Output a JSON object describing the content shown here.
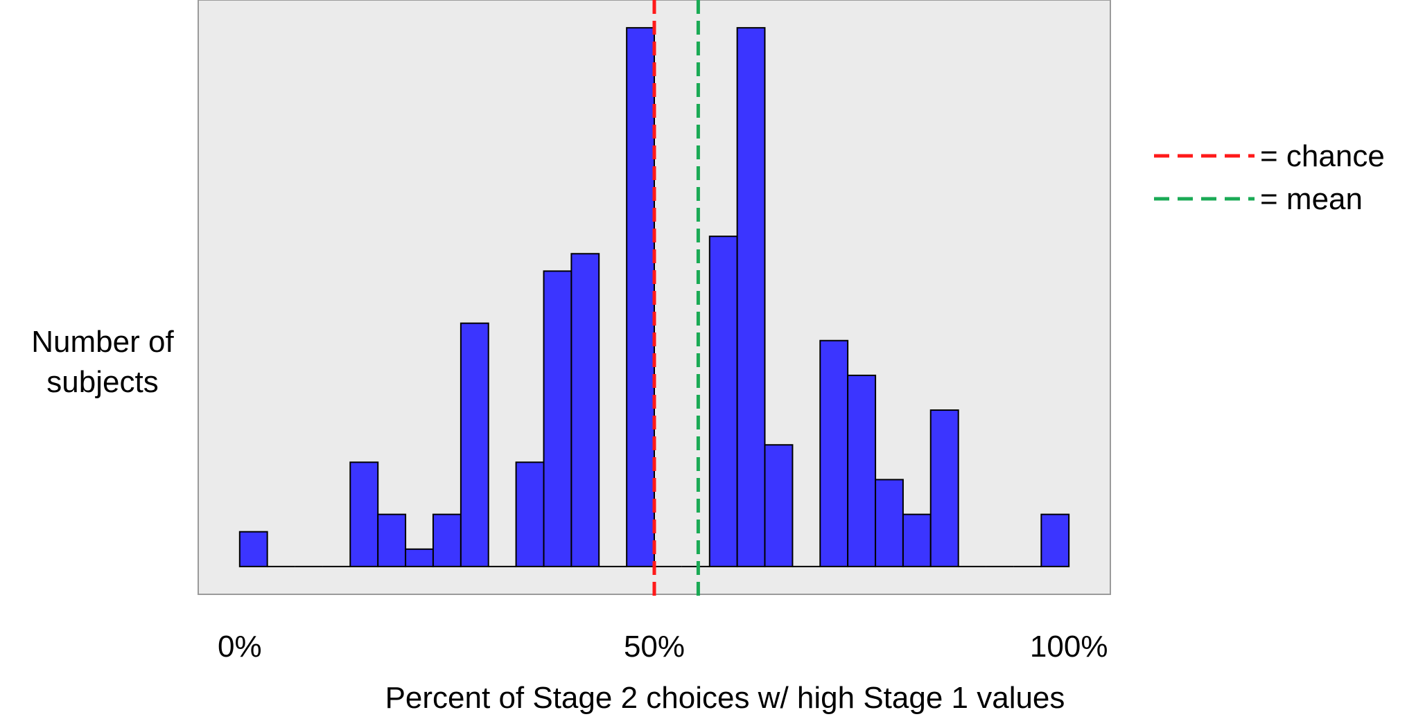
{
  "chart_data": {
    "type": "bar",
    "title": "",
    "xlabel": "Percent of Stage 2 choices w/ high Stage 1 values",
    "ylabel": [
      "Number of",
      "subjects"
    ],
    "x_ticks": [
      {
        "label": "0%",
        "value": 0
      },
      {
        "label": "50%",
        "value": 50
      },
      {
        "label": "100%",
        "value": 100
      }
    ],
    "bins": [
      {
        "start": 0,
        "end": 3.33,
        "value": 1
      },
      {
        "start": 3.33,
        "end": 6.67,
        "value": 0
      },
      {
        "start": 6.67,
        "end": 10,
        "value": 0
      },
      {
        "start": 10,
        "end": 13.33,
        "value": 0
      },
      {
        "start": 13.33,
        "end": 16.67,
        "value": 3
      },
      {
        "start": 16.67,
        "end": 20,
        "value": 1.5
      },
      {
        "start": 20,
        "end": 23.33,
        "value": 0.5
      },
      {
        "start": 23.33,
        "end": 26.67,
        "value": 1.5
      },
      {
        "start": 26.67,
        "end": 30,
        "value": 7
      },
      {
        "start": 30,
        "end": 33.33,
        "value": 0
      },
      {
        "start": 33.33,
        "end": 36.67,
        "value": 3
      },
      {
        "start": 36.67,
        "end": 40,
        "value": 8.5
      },
      {
        "start": 40,
        "end": 43.33,
        "value": 9
      },
      {
        "start": 43.33,
        "end": 46.67,
        "value": 0
      },
      {
        "start": 46.67,
        "end": 50,
        "value": 15.5
      },
      {
        "start": 50,
        "end": 53.33,
        "value": 0
      },
      {
        "start": 53.33,
        "end": 56.67,
        "value": 0
      },
      {
        "start": 56.67,
        "end": 60,
        "value": 9.5
      },
      {
        "start": 60,
        "end": 63.33,
        "value": 15.5
      },
      {
        "start": 63.33,
        "end": 66.67,
        "value": 3.5
      },
      {
        "start": 66.67,
        "end": 70,
        "value": 0
      },
      {
        "start": 70,
        "end": 73.33,
        "value": 6.5
      },
      {
        "start": 73.33,
        "end": 76.67,
        "value": 5.5
      },
      {
        "start": 76.67,
        "end": 80,
        "value": 2.5
      },
      {
        "start": 80,
        "end": 83.33,
        "value": 1.5
      },
      {
        "start": 83.33,
        "end": 86.67,
        "value": 4.5
      },
      {
        "start": 86.67,
        "end": 90,
        "value": 0
      },
      {
        "start": 90,
        "end": 93.33,
        "value": 0
      },
      {
        "start": 93.33,
        "end": 96.67,
        "value": 0
      },
      {
        "start": 96.67,
        "end": 100,
        "value": 1.5
      }
    ],
    "reference_lines": [
      {
        "label": "= chance",
        "x": 50,
        "color": "#ff1a1a"
      },
      {
        "label": "= mean",
        "x": 55.3,
        "color": "#1aaa55"
      }
    ],
    "bar_color": "#3b35ff",
    "plot_background": "#ebebeb",
    "xlim": [
      -5,
      105
    ],
    "ylim": [
      -0.8,
      16.3
    ],
    "grid": false,
    "legend_position": "right"
  }
}
